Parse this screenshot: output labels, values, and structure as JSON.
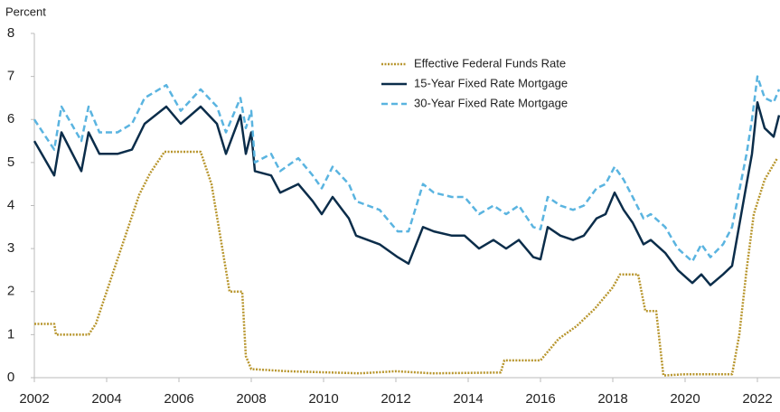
{
  "chart_data": {
    "type": "line",
    "y_label": "Percent",
    "xlim": [
      2002,
      2022.625
    ],
    "xticks": [
      2002,
      2004,
      2006,
      2008,
      2010,
      2012,
      2014,
      2016,
      2018,
      2020,
      2022
    ],
    "ylim": [
      0,
      8
    ],
    "yticks": [
      0,
      1,
      2,
      3,
      4,
      5,
      6,
      7,
      8
    ],
    "legend": "top-center",
    "series": [
      {
        "name": "Effective Federal Funds Rate",
        "color": "#b8962e",
        "style": "dotted",
        "x": [
          2002.0,
          2002.55,
          2002.6,
          2003.5,
          2003.7,
          2004.0,
          2004.3,
          2004.6,
          2004.9,
          2005.2,
          2005.6,
          2006.6,
          2006.9,
          2007.2,
          2007.4,
          2007.75,
          2007.85,
          2008.0,
          2009.0,
          2011.0,
          2012.0,
          2013.0,
          2014.9,
          2015.0,
          2016.0,
          2016.5,
          2017.0,
          2017.5,
          2018.0,
          2018.2,
          2018.7,
          2018.9,
          2019.2,
          2019.4,
          2020.0,
          2021.3,
          2021.5,
          2021.7,
          2021.9,
          2022.2,
          2022.55
        ],
        "values": [
          1.25,
          1.25,
          1.0,
          1.0,
          1.25,
          2.0,
          2.75,
          3.5,
          4.25,
          4.75,
          5.25,
          5.25,
          4.5,
          3.0,
          2.0,
          2.0,
          0.5,
          0.2,
          0.15,
          0.1,
          0.15,
          0.1,
          0.12,
          0.4,
          0.4,
          0.9,
          1.2,
          1.6,
          2.1,
          2.4,
          2.4,
          1.55,
          1.55,
          0.05,
          0.08,
          0.08,
          1.0,
          2.5,
          3.8,
          4.6,
          5.1
        ]
      },
      {
        "name": "15-Year Fixed Rate Mortgage",
        "color": "#0b2d4a",
        "style": "solid",
        "x": [
          2002.0,
          2002.55,
          2002.75,
          2003.3,
          2003.5,
          2003.8,
          2004.3,
          2004.7,
          2005.05,
          2005.65,
          2006.05,
          2006.6,
          2007.05,
          2007.3,
          2007.7,
          2007.85,
          2008.0,
          2008.1,
          2008.55,
          2008.8,
          2009.3,
          2009.7,
          2009.95,
          2010.25,
          2010.7,
          2010.9,
          2011.55,
          2012.05,
          2012.35,
          2012.75,
          2013.05,
          2013.55,
          2013.9,
          2014.3,
          2014.7,
          2015.05,
          2015.4,
          2015.8,
          2016.0,
          2016.2,
          2016.55,
          2016.9,
          2017.2,
          2017.55,
          2017.8,
          2018.05,
          2018.3,
          2018.55,
          2018.85,
          2019.05,
          2019.45,
          2019.8,
          2020.2,
          2020.45,
          2020.7,
          2021.05,
          2021.3,
          2021.7,
          2021.85,
          2022.0,
          2022.2,
          2022.45,
          2022.6
        ],
        "values": [
          5.5,
          4.7,
          5.7,
          4.8,
          5.7,
          5.2,
          5.2,
          5.3,
          5.9,
          6.3,
          5.9,
          6.3,
          5.9,
          5.2,
          6.1,
          5.2,
          5.7,
          4.8,
          4.7,
          4.3,
          4.5,
          4.1,
          3.8,
          4.2,
          3.7,
          3.3,
          3.1,
          2.8,
          2.65,
          3.5,
          3.4,
          3.3,
          3.3,
          3.0,
          3.2,
          3.0,
          3.2,
          2.8,
          2.75,
          3.5,
          3.3,
          3.2,
          3.3,
          3.7,
          3.8,
          4.3,
          3.9,
          3.6,
          3.1,
          3.2,
          2.9,
          2.5,
          2.2,
          2.4,
          2.15,
          2.4,
          2.6,
          4.5,
          5.2,
          6.4,
          5.8,
          5.6,
          6.1
        ]
      },
      {
        "name": "30-Year Fixed Rate Mortgage",
        "color": "#5ab4e0",
        "style": "dashed",
        "x": [
          2002.0,
          2002.55,
          2002.75,
          2003.3,
          2003.5,
          2003.8,
          2004.3,
          2004.7,
          2005.05,
          2005.65,
          2006.05,
          2006.6,
          2007.05,
          2007.3,
          2007.7,
          2007.85,
          2008.0,
          2008.1,
          2008.55,
          2008.8,
          2009.3,
          2009.7,
          2009.95,
          2010.25,
          2010.7,
          2010.9,
          2011.55,
          2012.05,
          2012.35,
          2012.75,
          2013.05,
          2013.55,
          2013.9,
          2014.3,
          2014.7,
          2015.05,
          2015.4,
          2015.8,
          2016.0,
          2016.2,
          2016.55,
          2016.9,
          2017.2,
          2017.55,
          2017.8,
          2018.05,
          2018.3,
          2018.55,
          2018.85,
          2019.05,
          2019.45,
          2019.8,
          2020.2,
          2020.45,
          2020.7,
          2021.05,
          2021.3,
          2021.7,
          2021.85,
          2022.0,
          2022.2,
          2022.45,
          2022.6
        ],
        "values": [
          6.0,
          5.3,
          6.3,
          5.5,
          6.3,
          5.7,
          5.7,
          5.9,
          6.5,
          6.8,
          6.2,
          6.7,
          6.3,
          5.7,
          6.5,
          5.8,
          6.2,
          5.0,
          5.2,
          4.8,
          5.1,
          4.7,
          4.4,
          4.9,
          4.5,
          4.1,
          3.9,
          3.4,
          3.4,
          4.5,
          4.3,
          4.2,
          4.2,
          3.8,
          4.0,
          3.8,
          4.0,
          3.5,
          3.45,
          4.2,
          4.0,
          3.9,
          4.0,
          4.4,
          4.5,
          4.9,
          4.6,
          4.2,
          3.7,
          3.8,
          3.5,
          3.0,
          2.7,
          3.1,
          2.8,
          3.1,
          3.5,
          5.2,
          6.0,
          7.0,
          6.5,
          6.4,
          6.7
        ]
      }
    ]
  }
}
